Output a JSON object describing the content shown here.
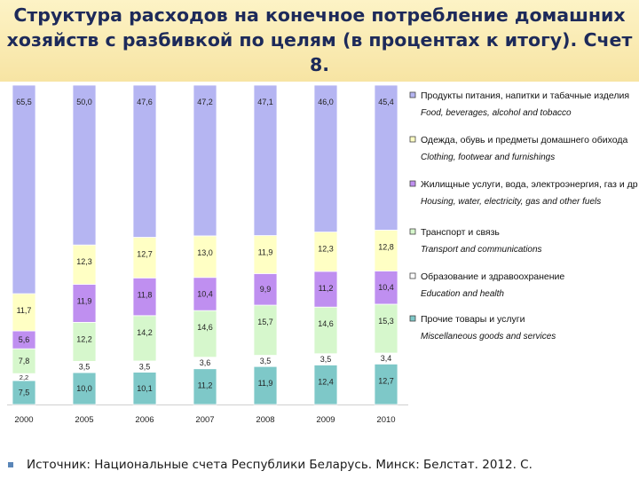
{
  "title": "Структура расходов на конечное потребление домашних хозяйств с разбивкой по целям (в процентах к итогу). Счет 8.",
  "source": "Источник: Национальные счета Республики Беларусь. Минск: Белстат. 2012. С.",
  "chart_data": {
    "type": "bar",
    "stacked": true,
    "ylim": [
      0,
      100
    ],
    "grid": false,
    "legend_position": "right",
    "categories": [
      "2000",
      "2005",
      "2006",
      "2007",
      "2008",
      "2009",
      "2010"
    ],
    "series": [
      {
        "name": "Прочие товары и услуги",
        "name_en": "Miscellaneous goods and services",
        "color": "#7ec8c8",
        "values": [
          7.5,
          10.0,
          10.1,
          11.2,
          11.9,
          12.4,
          12.7
        ],
        "labels": [
          "7,5",
          "10,0",
          "10,1",
          "11,2",
          "11,9",
          "12,4",
          "12,7"
        ]
      },
      {
        "name": "Образование и здравоохранение",
        "name_en": "Education and health",
        "color": "#ffffff",
        "values": [
          2.2,
          3.5,
          3.5,
          3.6,
          3.5,
          3.5,
          3.4
        ],
        "labels": [
          "2,2",
          "3,5",
          "3,5",
          "3,6",
          "3,5",
          "3,5",
          "3,4"
        ]
      },
      {
        "name": "Транспорт и связь",
        "name_en": "Transport and communications",
        "color": "#d6f7cc",
        "values": [
          7.8,
          12.2,
          14.2,
          14.6,
          15.7,
          14.6,
          15.3
        ],
        "labels": [
          "7,8",
          "12,2",
          "14,2",
          "14,6",
          "15,7",
          "14,6",
          "15,3"
        ]
      },
      {
        "name": "Жилищные услуги, вода, электроэнергия, газ и др",
        "name_en": "Housing, water, electricity, gas and other fuels",
        "color": "#bf8ff0",
        "values": [
          5.6,
          11.9,
          11.8,
          10.4,
          9.9,
          11.2,
          10.4
        ],
        "labels": [
          "5,6",
          "11,9",
          "11,8",
          "10,4",
          "9,9",
          "11,2",
          "10,4"
        ]
      },
      {
        "name": "Одежда, обувь и предметы домашнего обихода",
        "name_en": "Clothing, footwear and furnishings",
        "color": "#ffffc4",
        "values": [
          11.7,
          12.3,
          12.7,
          13.0,
          11.9,
          12.3,
          12.8
        ],
        "labels": [
          "11,7",
          "12,3",
          "12,7",
          "13,0",
          "11,9",
          "12,3",
          "12,8"
        ]
      },
      {
        "name": "Продукты питания, напитки и табачные изделия",
        "name_en": "Food, beverages, alcohol and tobacco",
        "color": "#b5b5f2",
        "values": [
          65.5,
          50.0,
          47.6,
          47.2,
          47.1,
          46.0,
          45.4
        ],
        "labels": [
          "65,5",
          "50,0",
          "47,6",
          "47,2",
          "47,1",
          "46,0",
          "45,4"
        ]
      }
    ]
  }
}
